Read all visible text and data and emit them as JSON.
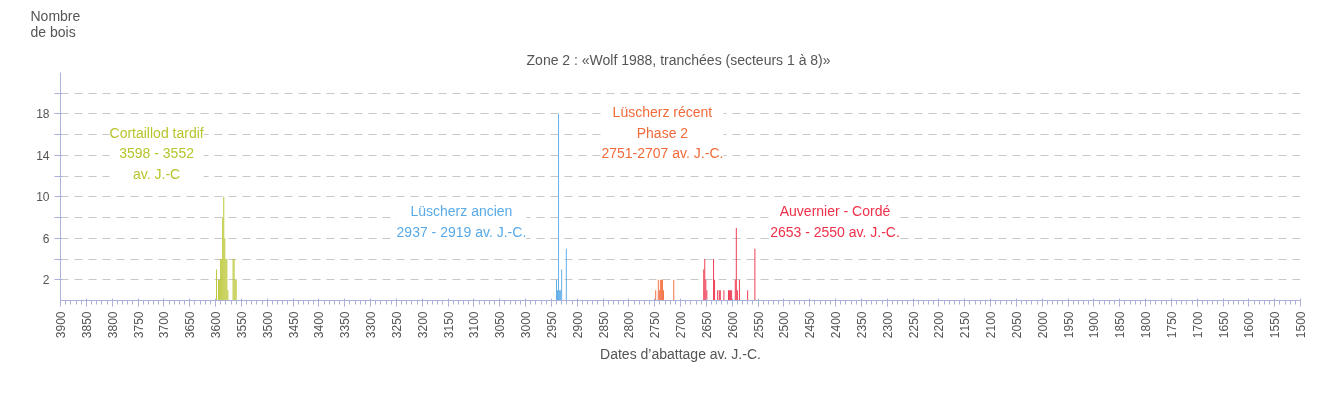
{
  "chart_data": {
    "type": "bar",
    "title": "Zone 2 :  «Wolf 1988, tranchées (secteurs 1 à 8)»",
    "xlabel": "Dates d’abattage av. J.-C.",
    "ylabel": "Nombre\nde bois",
    "xlim": [
      3900,
      1500
    ],
    "xticks": [
      3900,
      3850,
      3800,
      3750,
      3700,
      3650,
      3600,
      3550,
      3500,
      3450,
      3400,
      3350,
      3300,
      3250,
      3200,
      3150,
      3100,
      3050,
      3000,
      2950,
      2900,
      2850,
      2800,
      2750,
      2700,
      2650,
      2600,
      2550,
      2500,
      2450,
      2400,
      2350,
      2300,
      2250,
      2200,
      2150,
      2100,
      2050,
      2000,
      1950,
      1900,
      1850,
      1800,
      1750,
      1700,
      1650,
      1600,
      1550,
      1500
    ],
    "ylim": [
      0,
      22
    ],
    "yticks": [
      2,
      {
        "value": 4,
        "label": null
      },
      6,
      {
        "value": 8,
        "label": null
      },
      10,
      {
        "value": 12,
        "label": null
      },
      14,
      {
        "value": 16,
        "label": null
      },
      18,
      {
        "value": 20,
        "label": null
      }
    ],
    "grid": "y",
    "series": [
      {
        "color": "#b8c42c",
        "x": [
          3598,
          3594,
          3592,
          3590,
          3588,
          3586,
          3584,
          3582,
          3580,
          3578,
          3576,
          3566,
          3564,
          3562,
          3560
        ],
        "values": [
          3,
          2,
          2,
          4,
          4,
          8,
          10,
          6,
          4,
          4,
          1,
          4,
          4,
          2,
          2
        ]
      },
      {
        "color": "#5aaae8",
        "x": [
          2940,
          2938,
          2936,
          2934,
          2932,
          2930,
          2921
        ],
        "values": [
          2,
          1,
          18,
          1,
          1,
          3,
          5
        ]
      },
      {
        "color": "#f26a3a",
        "x": [
          2748,
          2743,
          2741,
          2739,
          2737,
          2735,
          2733,
          2713
        ],
        "values": [
          1,
          2,
          1,
          2,
          2,
          2,
          1,
          2
        ]
      },
      {
        "color": "#ee3048",
        "x": [
          2655,
          2653,
          2651,
          2649,
          2636,
          2634,
          2628,
          2625,
          2623,
          2616,
          2607,
          2605,
          2603,
          2601,
          2594,
          2592,
          2590,
          2586,
          2570,
          2556
        ],
        "values": [
          3,
          4,
          2,
          1,
          4,
          2,
          1,
          1,
          1,
          1,
          1,
          1,
          1,
          1,
          2,
          7,
          1,
          2,
          1,
          5
        ]
      }
    ],
    "annotations": [
      "Cortaillod tardif\n3598 - 3552\nav. J.-C",
      "Lüscherz ancien\n2937 - 2919 av. J.-C.",
      "Lüscherz récent\nPhase 2\n2751-2707 av. J.-C.",
      "Auvernier - Cordé\n2653 - 2550 av. J.-C."
    ]
  }
}
